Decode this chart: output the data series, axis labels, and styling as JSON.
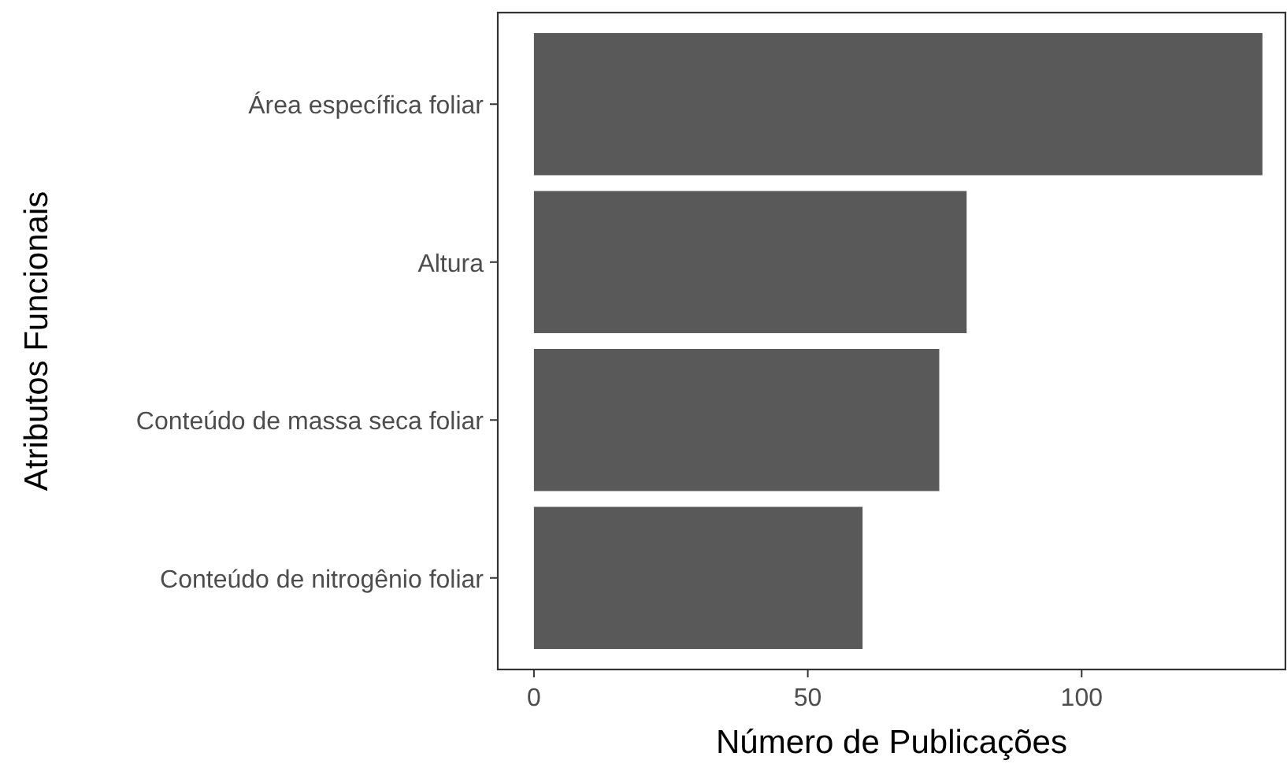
{
  "chart_data": {
    "type": "bar",
    "orientation": "horizontal",
    "xlabel": "Número de Publicações",
    "ylabel": "Atributos Funcionais",
    "categories": [
      "Área específica foliar",
      "Altura",
      "Conteúdo de massa seca foliar",
      "Conteúdo de nitrogênio foliar"
    ],
    "values": [
      133,
      79,
      74,
      60
    ],
    "color": "#595959",
    "xlim": [
      -6.6,
      137.2
    ],
    "xticks": [
      0,
      50,
      100
    ],
    "grid": false
  }
}
